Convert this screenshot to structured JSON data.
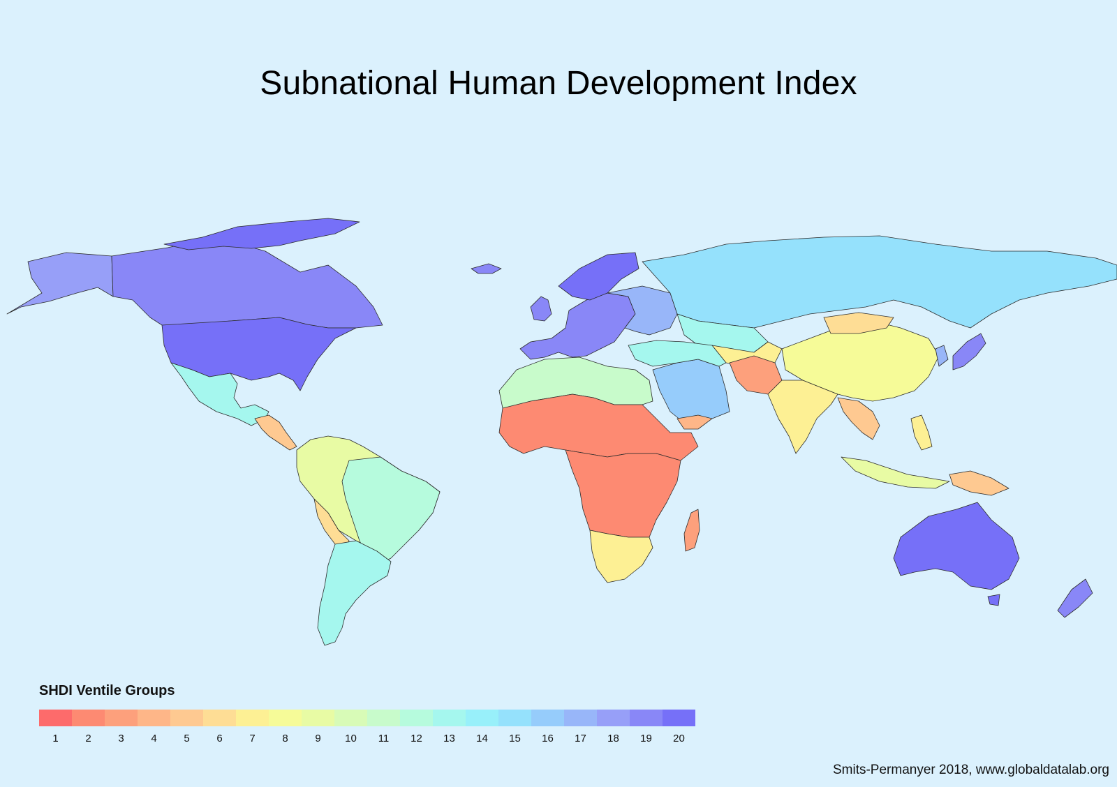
{
  "title": "Subnational Human Development Index",
  "legend": {
    "title": "SHDI Ventile Groups",
    "groups": [
      {
        "label": "1",
        "color": "#fd6b6b"
      },
      {
        "label": "2",
        "color": "#fd8a72"
      },
      {
        "label": "3",
        "color": "#fda07c"
      },
      {
        "label": "4",
        "color": "#feb688"
      },
      {
        "label": "5",
        "color": "#fec991"
      },
      {
        "label": "6",
        "color": "#fedd95"
      },
      {
        "label": "7",
        "color": "#fdf094"
      },
      {
        "label": "8",
        "color": "#f6fb98"
      },
      {
        "label": "9",
        "color": "#e8fba4"
      },
      {
        "label": "10",
        "color": "#d8fbb7"
      },
      {
        "label": "11",
        "color": "#c8fbcb"
      },
      {
        "label": "12",
        "color": "#b6fbdd"
      },
      {
        "label": "13",
        "color": "#a5f7ee"
      },
      {
        "label": "14",
        "color": "#98f0fa"
      },
      {
        "label": "15",
        "color": "#95e1fc"
      },
      {
        "label": "16",
        "color": "#96ccfb"
      },
      {
        "label": "17",
        "color": "#98b6f9"
      },
      {
        "label": "18",
        "color": "#979ff8"
      },
      {
        "label": "19",
        "color": "#8987f7"
      },
      {
        "label": "20",
        "color": "#7670f8"
      }
    ]
  },
  "credit": "Smits-Permanyer 2018, www.globaldatalab.org",
  "colors": {
    "ocean": "#dbf1fd",
    "border": "#2b2b2b"
  }
}
